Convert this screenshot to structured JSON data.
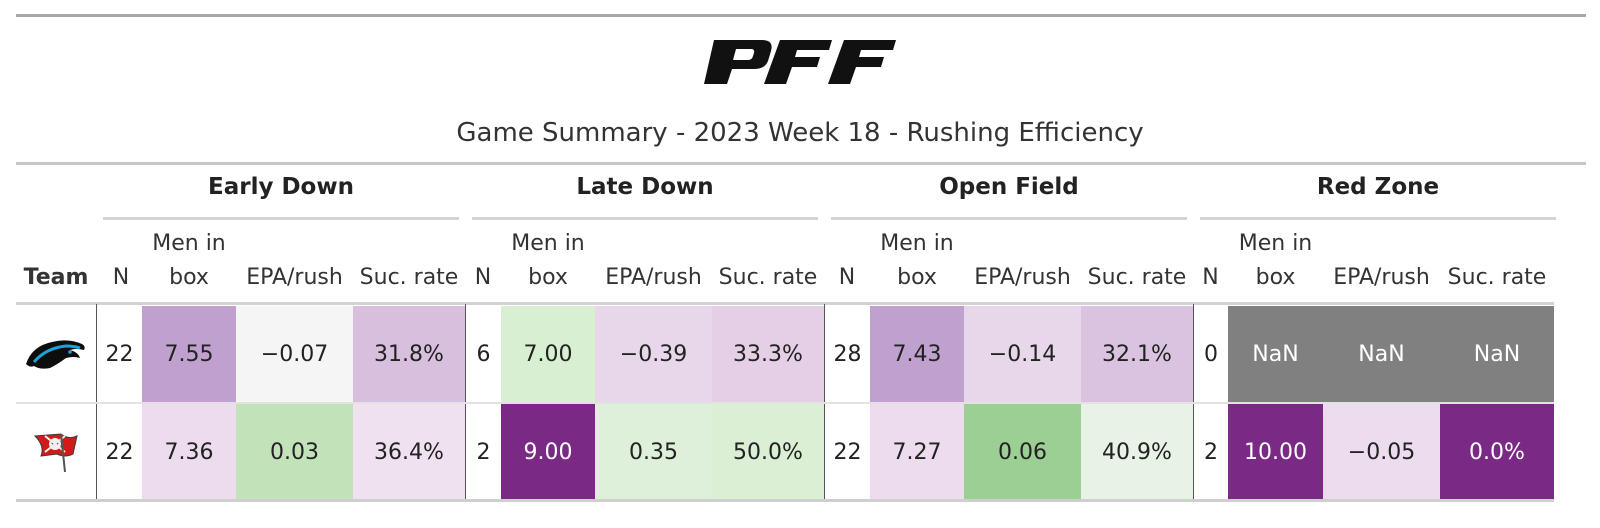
{
  "title": "Game Summary - 2023 Week 18 - Rushing Efficiency",
  "logo_text": "PFF",
  "groups": [
    "Early Down",
    "Late Down",
    "Open Field",
    "Red Zone"
  ],
  "columns": {
    "team": "Team",
    "n": "N",
    "men_in_box_line1": "Men in",
    "men_in_box_line2": "box",
    "epa": "EPA/rush",
    "suc": "Suc. rate"
  },
  "rows": [
    {
      "team_icon": "panther-logo-icon",
      "cells": [
        "22",
        "7.55",
        "−0.07",
        "31.8%",
        "6",
        "7.00",
        "−0.39",
        "33.3%",
        "28",
        "7.43",
        "−0.14",
        "32.1%",
        "0",
        "NaN",
        "NaN",
        "NaN"
      ]
    },
    {
      "team_icon": "buccaneers-flag-logo-icon",
      "cells": [
        "22",
        "7.36",
        "0.03",
        "36.4%",
        "2",
        "9.00",
        "0.35",
        "50.0%",
        "22",
        "7.27",
        "0.06",
        "40.9%",
        "2",
        "10.00",
        "−0.05",
        "0.0%"
      ]
    }
  ],
  "cell_colors": [
    [
      "#ffffff",
      "#bfa0cf",
      "#f5f5f5",
      "#d8bfde",
      "#ffffff",
      "#d8efd2",
      "#e8d6ea",
      "#e5cfe7",
      "#ffffff",
      "#bfa0cf",
      "#e8d6ea",
      "#dac3e0",
      "#ffffff",
      "#808080",
      "#808080",
      "#808080"
    ],
    [
      "#ffffff",
      "#eddcee",
      "#c2e3ba",
      "#efe1f0",
      "#ffffff",
      "#7a2a85",
      "#deefda",
      "#daefd4",
      "#ffffff",
      "#eddcee",
      "#9ccf93",
      "#e7f3e4",
      "#ffffff",
      "#7a2a85",
      "#eddcee",
      "#7a2a85"
    ]
  ],
  "dark_text_cells": [
    [
      false,
      false,
      false,
      false,
      false,
      false,
      false,
      false,
      false,
      false,
      false,
      false,
      false,
      true,
      true,
      true
    ],
    [
      false,
      false,
      false,
      false,
      false,
      true,
      false,
      false,
      false,
      false,
      false,
      false,
      false,
      true,
      false,
      true
    ]
  ]
}
